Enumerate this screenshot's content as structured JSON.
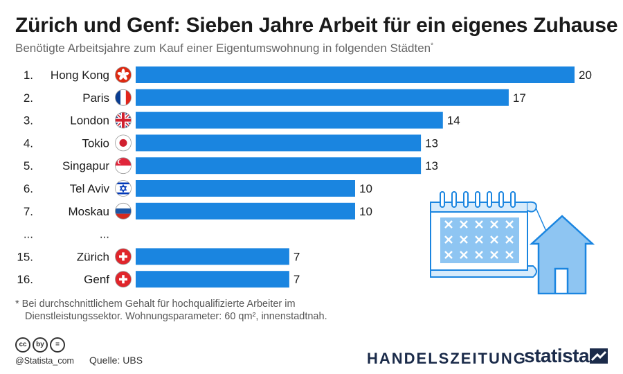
{
  "header": {
    "title": "Zürich und Genf: Sieben Jahre Arbeit für ein eigenes Zuhause",
    "subtitle": "Benötigte Arbeitsjahre zum Kauf einer Eigentumswohnung in folgenden Städten",
    "subtitle_mark": "*"
  },
  "chart_data": {
    "type": "bar",
    "orientation": "horizontal",
    "title": "Zürich und Genf: Sieben Jahre Arbeit für ein eigenes Zuhause",
    "subtitle": "Benötigte Arbeitsjahre zum Kauf einer Eigentumswohnung in folgenden Städten",
    "unit": "Arbeitsjahre",
    "xlim": [
      0,
      20
    ],
    "bar_color": "#1a85e0",
    "rows": [
      {
        "rank": "1.",
        "city": "Hong Kong",
        "value": 20,
        "flag": "hong-kong-flag-icon"
      },
      {
        "rank": "2.",
        "city": "Paris",
        "value": 17,
        "flag": "france-flag-icon"
      },
      {
        "rank": "3.",
        "city": "London",
        "value": 14,
        "flag": "uk-flag-icon"
      },
      {
        "rank": "4.",
        "city": "Tokio",
        "value": 13,
        "flag": "japan-flag-icon"
      },
      {
        "rank": "5.",
        "city": "Singapur",
        "value": 13,
        "flag": "singapore-flag-icon"
      },
      {
        "rank": "6.",
        "city": "Tel Aviv",
        "value": 10,
        "flag": "israel-flag-icon"
      },
      {
        "rank": "7.",
        "city": "Moskau",
        "value": 10,
        "flag": "russia-flag-icon"
      },
      {
        "rank": "...",
        "city": "...",
        "value": null,
        "flag": null
      },
      {
        "rank": "15.",
        "city": "Zürich",
        "value": 7,
        "flag": "switzerland-flag-icon"
      },
      {
        "rank": "16.",
        "city": "Genf",
        "value": 7,
        "flag": "switzerland-flag-icon"
      }
    ]
  },
  "footnote": {
    "line1": "* Bei durchschnittlichem Gehalt für hochqualifizierte Arbeiter im",
    "line2": "Dienstleistungssektor. Wohnungsparameter: 60 qm², innenstadtnah."
  },
  "footer": {
    "license_icons": [
      "cc",
      "by",
      "="
    ],
    "handle": "@Statista_com",
    "source": "Quelle: UBS",
    "partner": "HANDELSZEITUNG",
    "brand": "statista"
  }
}
